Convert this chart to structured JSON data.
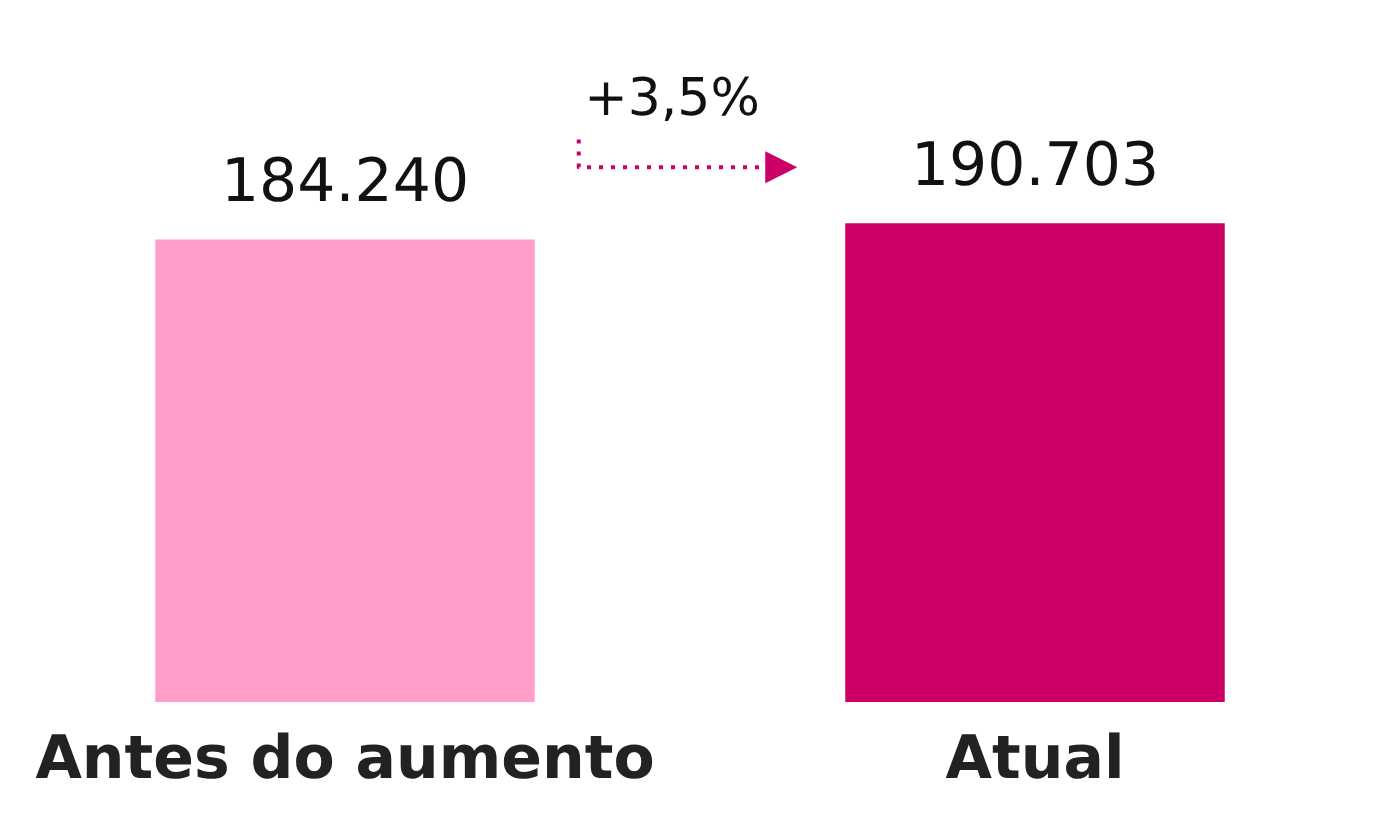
{
  "chart_data": {
    "type": "bar",
    "categories": [
      "Antes do aumento",
      "Atual"
    ],
    "values": [
      184240,
      190703
    ],
    "value_labels": [
      "184.240",
      "190.703"
    ],
    "colors": [
      "#ff9ecb",
      "#cc0066"
    ],
    "tick_labels": "x",
    "grid": false,
    "legend": false,
    "annotations": [
      "+3,5%"
    ]
  }
}
